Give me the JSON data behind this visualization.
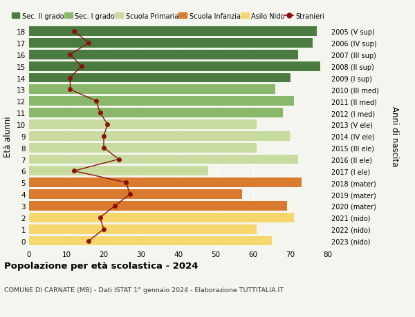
{
  "ages": [
    0,
    1,
    2,
    3,
    4,
    5,
    6,
    7,
    8,
    9,
    10,
    11,
    12,
    13,
    14,
    15,
    16,
    17,
    18
  ],
  "right_labels": [
    "2023 (nido)",
    "2022 (nido)",
    "2021 (nido)",
    "2020 (mater)",
    "2019 (mater)",
    "2018 (mater)",
    "2017 (I ele)",
    "2016 (II ele)",
    "2015 (III ele)",
    "2014 (IV ele)",
    "2013 (V ele)",
    "2012 (I med)",
    "2011 (II med)",
    "2010 (III med)",
    "2009 (I sup)",
    "2008 (II sup)",
    "2007 (III sup)",
    "2006 (IV sup)",
    "2005 (V sup)"
  ],
  "bar_values": [
    65,
    61,
    71,
    69,
    57,
    73,
    48,
    72,
    61,
    70,
    61,
    68,
    71,
    66,
    70,
    78,
    72,
    76,
    77
  ],
  "bar_colors": [
    "#f5d76e",
    "#f5d76e",
    "#f5d76e",
    "#d97b2e",
    "#d97b2e",
    "#d97b2e",
    "#c8dca0",
    "#c8dca0",
    "#c8dca0",
    "#c8dca0",
    "#c8dca0",
    "#8ab86a",
    "#8ab86a",
    "#8ab86a",
    "#4a7c3f",
    "#4a7c3f",
    "#4a7c3f",
    "#4a7c3f",
    "#4a7c3f"
  ],
  "stranieri_values": [
    16,
    20,
    19,
    23,
    27,
    26,
    12,
    24,
    20,
    20,
    21,
    19,
    18,
    11,
    11,
    14,
    11,
    16,
    12
  ],
  "title": "Popolazione per età scolastica - 2024",
  "subtitle": "COMUNE DI CARNATE (MB) - Dati ISTAT 1° gennaio 2024 - Elaborazione TUTTITALIA.IT",
  "ylabel": "Età alunni",
  "right_ylabel": "Anni di nascita",
  "xlim": [
    0,
    80
  ],
  "xticks": [
    0,
    10,
    20,
    30,
    40,
    50,
    60,
    70,
    80
  ],
  "legend_items": [
    {
      "label": "Sec. II grado",
      "color": "#4a7c3f",
      "type": "patch"
    },
    {
      "label": "Sec. I grado",
      "color": "#8ab86a",
      "type": "patch"
    },
    {
      "label": "Scuola Primaria",
      "color": "#c8dca0",
      "type": "patch"
    },
    {
      "label": "Scuola Infanzia",
      "color": "#d97b2e",
      "type": "patch"
    },
    {
      "label": "Asilo Nido",
      "color": "#f5d76e",
      "type": "patch"
    },
    {
      "label": "Stranieri",
      "color": "#8b1010",
      "type": "line"
    }
  ],
  "background_color": "#f5f5f0",
  "grid_color": "#ffffff",
  "stranieri_color": "#8b1010"
}
